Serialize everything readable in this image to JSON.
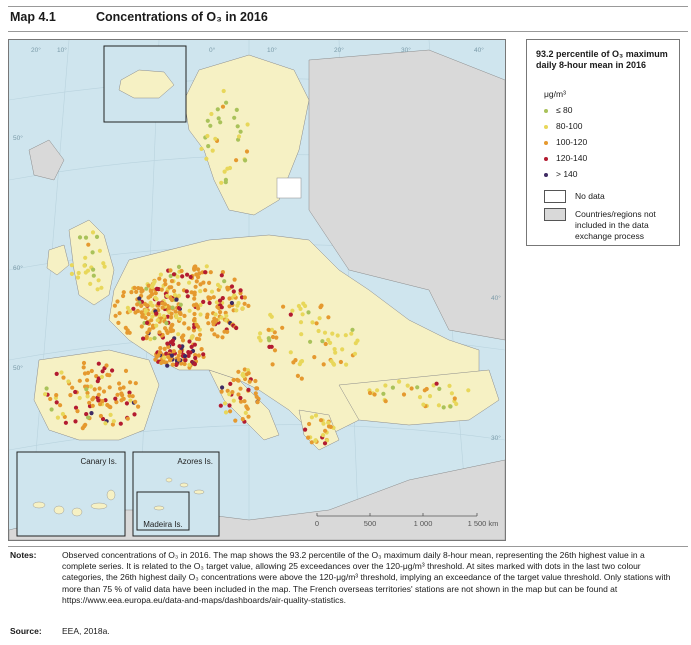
{
  "header": {
    "map_label": "Map 4.1",
    "title": "Concentrations of O₃ in 2016"
  },
  "legend": {
    "title": "93.2 percentile of O₃ maximum daily 8-hour mean in 2016",
    "unit": "μg/m³",
    "classes": [
      {
        "label": "≤ 80",
        "color": "#a9c25a"
      },
      {
        "label": "80-100",
        "color": "#e8d75a"
      },
      {
        "label": "100-120",
        "color": "#e5992f"
      },
      {
        "label": "120-140",
        "color": "#b31b30"
      },
      {
        "label": "> 140",
        "color": "#3f2b63"
      }
    ],
    "no_data_label": "No data",
    "no_data_color": "#ffffff",
    "not_included_label": "Countries/regions not included in the data exchange process",
    "not_included_color": "#d9d9d9"
  },
  "map": {
    "sea_color": "#cfe5ee",
    "land_reporting_color": "#f6f1c4",
    "land_other_color": "#d9d9d9",
    "insets": {
      "canary": "Canary Is.",
      "azores": "Azores Is.",
      "madeira": "Madeira Is."
    },
    "scale": {
      "ticks": [
        "0",
        "500",
        "1 000",
        "1 500 km"
      ]
    },
    "graticule": [
      "20°",
      "10°",
      "0°",
      "10°",
      "20°",
      "30°",
      "40°",
      "50°",
      "60°",
      "50°",
      "40°",
      "30°"
    ]
  },
  "notes": {
    "label": "Notes:",
    "text": "Observed concentrations of O₃ in 2016. The map shows the 93.2 percentile of the O₃ maximum daily 8-hour mean, representing the 26th highest value in a complete series. It is related to the O₃ target value, allowing 25 exceedances over the 120-μg/m³ threshold. At sites marked with dots in the last two colour categories, the 26th highest daily O₃ concentrations were above the 120-μg/m³ threshold, implying an exceedance of the target value threshold. Only stations with more than 75 % of valid data have been included in the map. The French overseas territories' stations are not shown in the map but can be found at https://www.eea.europa.eu/data-and-maps/dashboards/air-quality-statistics."
  },
  "source": {
    "label": "Source:",
    "text": "EEA, 2018a."
  }
}
